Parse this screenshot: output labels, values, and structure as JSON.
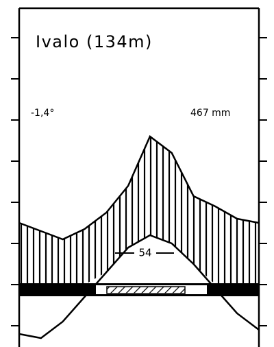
{
  "chart_data": {
    "type": "climate",
    "title": "Ivalo (134m)",
    "annotations": [
      "-1,4°",
      "467 mm",
      "54"
    ],
    "categories": [
      null,
      null,
      null,
      null,
      null,
      null,
      null,
      null,
      null,
      null,
      null,
      null
    ],
    "series": [
      {
        "name": null,
        "color": "#000000",
        "values": [
          -12,
          -13,
          -9,
          -3,
          3,
          9,
          12,
          10,
          5,
          -1,
          -7,
          -11
        ]
      },
      {
        "name": null,
        "color": "#000000",
        "axis": "y2",
        "values": [
          30,
          26,
          22,
          27,
          35,
          48,
          72,
          64,
          43,
          38,
          32,
          30
        ]
      }
    ],
    "ylim": [
      -15,
      65
    ],
    "yticks": [
      -10,
      0,
      10,
      20,
      30,
      40,
      50,
      60
    ],
    "y2lim": [
      -30,
      130
    ],
    "y2ticks": [
      -20,
      0,
      20,
      40,
      60,
      80,
      100,
      120
    ]
  }
}
